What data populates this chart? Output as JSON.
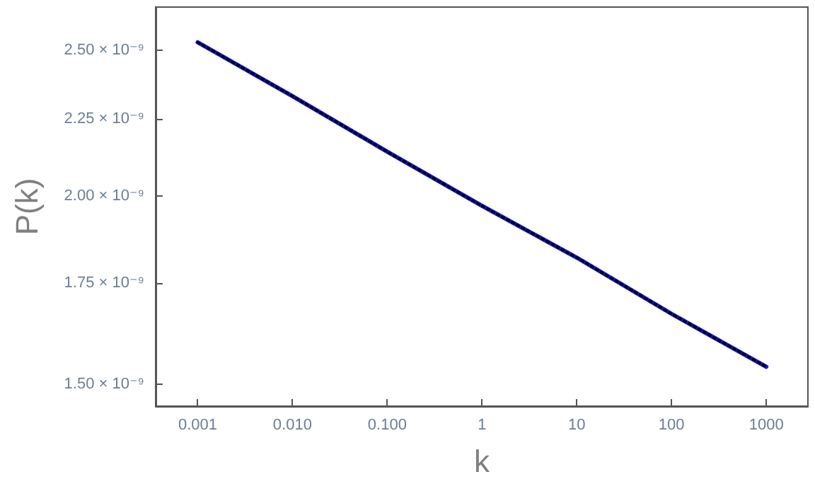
{
  "chart_data": {
    "type": "line",
    "xlabel": "k",
    "ylabel": "P(k)",
    "log": "xy",
    "grid": false,
    "marker": "none",
    "x": [
      0.001,
      0.01,
      0.1,
      1,
      10,
      100,
      1000
    ],
    "series": [
      {
        "color": "#1a1aff",
        "line_style": "solid",
        "values": [
          2.53e-09,
          2.33e-09,
          2.14e-09,
          1.97e-09,
          1.82e-09,
          1.67e-09,
          1.54e-09
        ]
      },
      {
        "color": "#000000",
        "line_style": "dotted",
        "values": [
          2.53e-09,
          2.33e-09,
          2.14e-09,
          1.97e-09,
          1.82e-09,
          1.67e-09,
          1.54e-09
        ]
      }
    ],
    "xlim": [
      0.00036,
      2750
    ],
    "xticks": [
      {
        "value": 0.001,
        "label": "0.001"
      },
      {
        "value": 0.01,
        "label": "0.010"
      },
      {
        "value": 0.1,
        "label": "0.100"
      },
      1,
      10,
      100,
      1000
    ],
    "ylim": [
      1.45e-09,
      2.67e-09
    ],
    "yticks": [
      {
        "value": 1.5e-09,
        "label": "1.50 × 10⁻⁹"
      },
      {
        "value": 1.75e-09,
        "label": "1.75 × 10⁻⁹"
      },
      {
        "value": 2e-09,
        "label": "2.00 × 10⁻⁹"
      },
      {
        "value": 2.25e-09,
        "label": "2.25 × 10⁻⁹"
      },
      {
        "value": 2.5e-09,
        "label": "2.50 × 10⁻⁹"
      }
    ]
  }
}
